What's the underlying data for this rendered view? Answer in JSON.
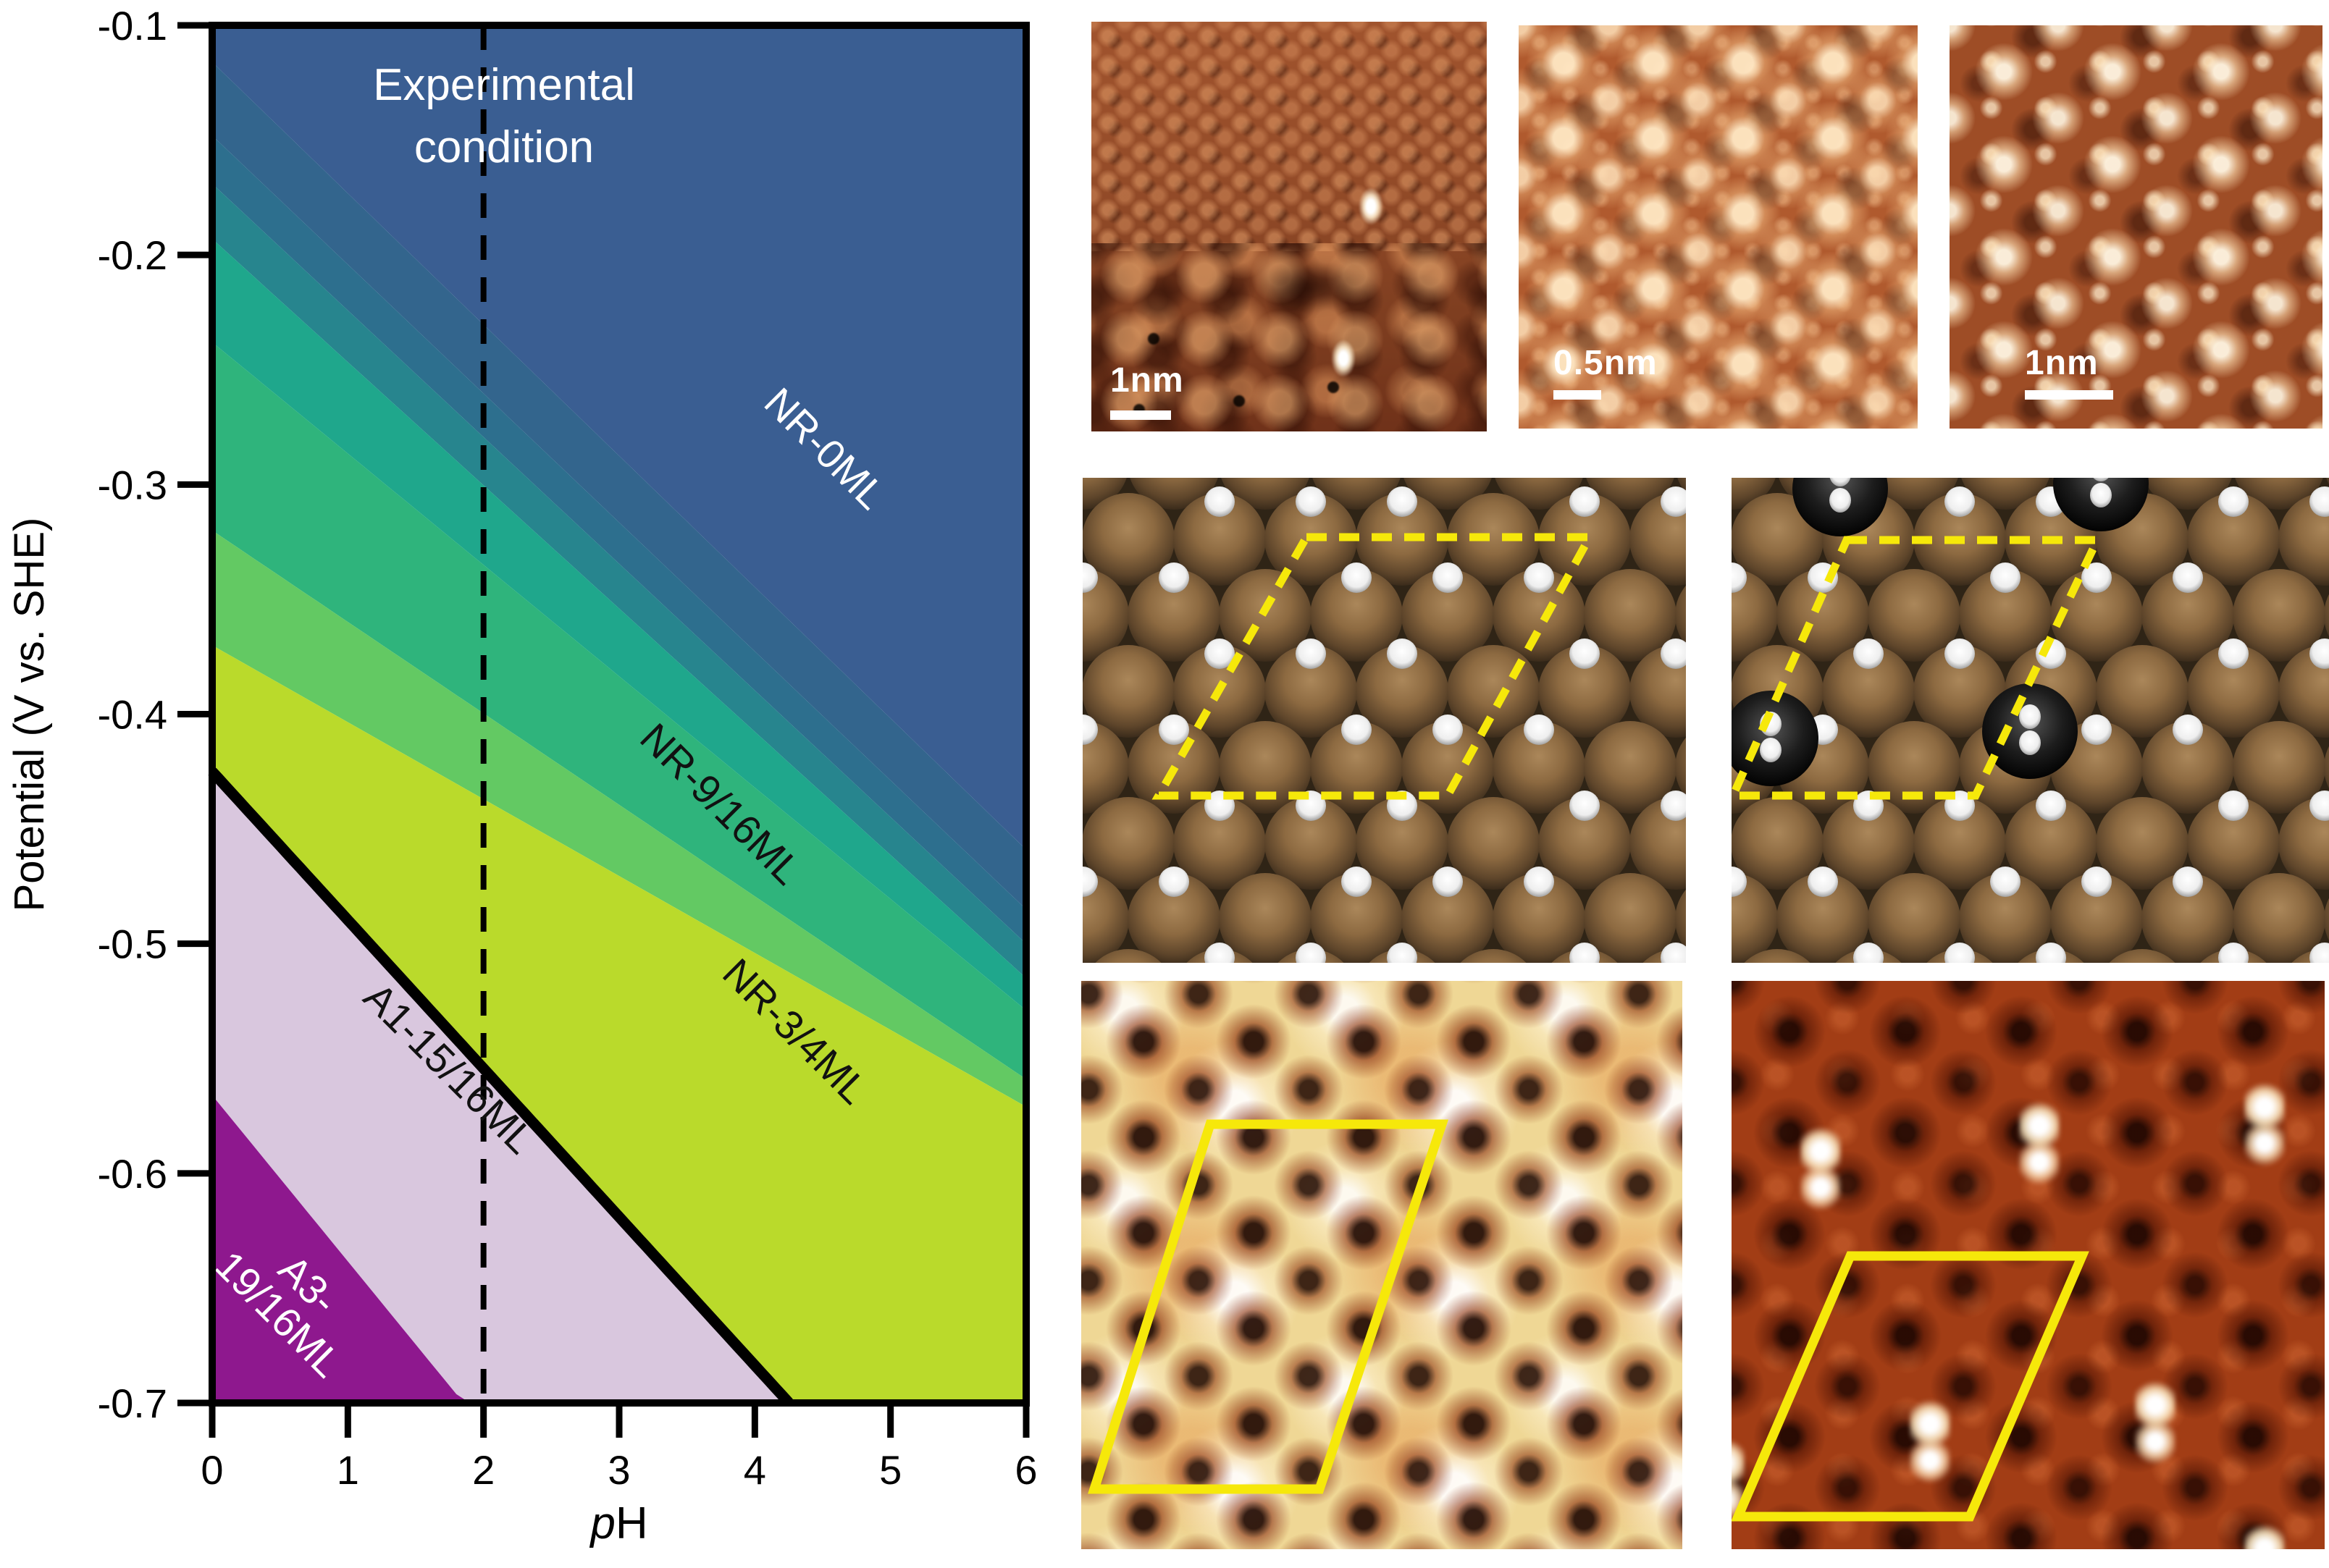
{
  "figure": {
    "kind": "multi-panel scientific figure",
    "accent_yellow": "#f6e80a",
    "background": "#ffffff"
  },
  "chart_data": {
    "type": "heatmap",
    "subtype": "surface-phase-diagram-contour",
    "xlabel": "pH",
    "ylabel": "Potential (V vs. SHE)",
    "xlim": [
      0,
      6
    ],
    "ylim": [
      -0.7,
      -0.1
    ],
    "xticks": [
      "0",
      "1",
      "2",
      "3",
      "4",
      "5",
      "6"
    ],
    "yticks": [
      "-0.1",
      "-0.2",
      "-0.3",
      "-0.4",
      "-0.5",
      "-0.6",
      "-0.7"
    ],
    "grid": false,
    "experimental_pH": 2,
    "annotation_lines": [
      "Experimental",
      "condition"
    ],
    "annotation_color": "#ffffff",
    "boundaries": [
      {
        "v_at_pH0": -0.1,
        "v_at_pH6": -0.1
      },
      {
        "v_at_pH0": -0.116,
        "v_at_pH6": -0.459
      },
      {
        "v_at_pH0": -0.148,
        "v_at_pH6": -0.485
      },
      {
        "v_at_pH0": -0.169,
        "v_at_pH6": -0.5
      },
      {
        "v_at_pH0": -0.193,
        "v_at_pH6": -0.515
      },
      {
        "v_at_pH0": -0.238,
        "v_at_pH6": -0.529
      },
      {
        "v_at_pH0": -0.32,
        "v_at_pH6": -0.559
      },
      {
        "v_at_pH0": -0.37,
        "v_at_pH6": -0.571
      },
      {
        "v_at_pH0": -0.425,
        "v_at_pH6": -0.813,
        "thick_line": true
      },
      {
        "v_at_pH0": -0.566,
        "v_at_pH6": -1.0
      },
      {
        "v_at_pH0": -0.7,
        "v_at_pH6": -0.7
      }
    ],
    "bands": [
      {
        "color": "#3a5e92",
        "label": "NR-0ML",
        "label_color": "#ffffff",
        "label_pH": 4.52,
        "label_V": -0.284
      },
      {
        "color": "#33658d"
      },
      {
        "color": "#2d6f8e"
      },
      {
        "color": "#27858e"
      },
      {
        "color": "#1fa78c"
      },
      {
        "color": "#2fb47c",
        "label": "NR-9/16ML",
        "label_color": "#111111",
        "label_pH": 3.75,
        "label_V": -0.439
      },
      {
        "color": "#63c963"
      },
      {
        "color": "#bada2b",
        "label": "NR-3/4ML",
        "label_color": "#111111",
        "label_pH": 4.3,
        "label_V": -0.538
      },
      {
        "color": "#d9c7de",
        "label": "A1-15/16ML",
        "label_color": "#111111",
        "label_pH": 1.75,
        "label_V": -0.554
      },
      {
        "color": "#8e188e",
        "label": "A3-\n19/16ML",
        "label_color": "#ffffff",
        "label_pH": 0.6,
        "label_V": -0.655
      }
    ]
  },
  "panels": {
    "stm1": {
      "scale_label": "1nm"
    },
    "stm2": {
      "scale_label": "0.5nm"
    },
    "stm3": {
      "scale_label": "1nm"
    },
    "model1": {
      "unit_cell": [
        [
          309,
          82
        ],
        [
          700,
          82
        ],
        [
          504,
          439
        ],
        [
          105,
          439
        ]
      ],
      "unit_cell_style": "dashed"
    },
    "model2": {
      "unit_cell": [
        [
          159,
          86
        ],
        [
          505,
          86
        ],
        [
          337,
          439
        ],
        [
          2,
          439
        ]
      ],
      "unit_cell_style": "dashed",
      "black_spheres": [
        [
          150,
          15
        ],
        [
          510,
          8
        ],
        [
          54,
          360
        ],
        [
          412,
          350
        ]
      ]
    },
    "sim1": {
      "unit_cell": [
        [
          178,
          198
        ],
        [
          498,
          198
        ],
        [
          329,
          702
        ],
        [
          18,
          702
        ]
      ],
      "unit_cell_style": "solid"
    },
    "sim2": {
      "unit_cell": [
        [
          164,
          380
        ],
        [
          484,
          380
        ],
        [
          329,
          740
        ],
        [
          9,
          740
        ]
      ],
      "unit_cell_style": "solid",
      "bright_spots": [
        [
          123,
          259
        ],
        [
          425,
          224
        ],
        [
          736,
          198
        ],
        [
          274,
          636
        ],
        [
          585,
          610
        ],
        [
          123,
          848
        ],
        [
          736,
          808
        ],
        [
          -10,
          690
        ]
      ]
    }
  }
}
